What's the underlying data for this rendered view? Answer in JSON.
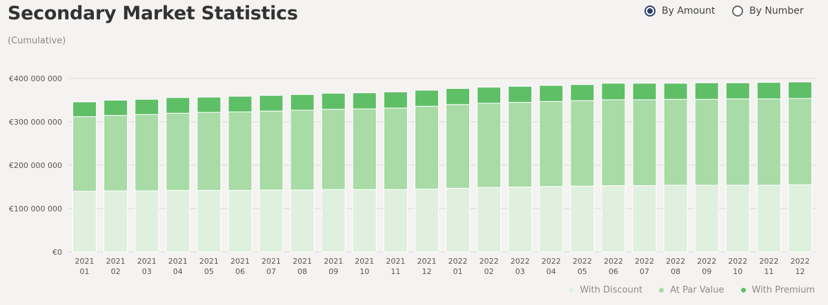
{
  "header": {
    "title": "Secondary Market Statistics",
    "subtitle": "(Cumulative)"
  },
  "controls": {
    "by_amount_label": "By Amount",
    "by_number_label": "By Number",
    "selected": "By Amount"
  },
  "colors": {
    "with_discount": "#dff0de",
    "at_par_value": "#a8dba6",
    "with_premium": "#5fbf67",
    "grid": "#d9d9d9",
    "radio_accent": "#2d3e6b"
  },
  "chart_data": {
    "type": "bar",
    "stacked": true,
    "categories": [
      [
        "2021",
        "01"
      ],
      [
        "2021",
        "02"
      ],
      [
        "2021",
        "03"
      ],
      [
        "2021",
        "04"
      ],
      [
        "2021",
        "05"
      ],
      [
        "2021",
        "06"
      ],
      [
        "2021",
        "07"
      ],
      [
        "2021",
        "08"
      ],
      [
        "2021",
        "09"
      ],
      [
        "2021",
        "10"
      ],
      [
        "2021",
        "11"
      ],
      [
        "2021",
        "12"
      ],
      [
        "2022",
        "01"
      ],
      [
        "2022",
        "02"
      ],
      [
        "2022",
        "03"
      ],
      [
        "2022",
        "04"
      ],
      [
        "2022",
        "05"
      ],
      [
        "2022",
        "06"
      ],
      [
        "2022",
        "07"
      ],
      [
        "2022",
        "08"
      ],
      [
        "2022",
        "09"
      ],
      [
        "2022",
        "10"
      ],
      [
        "2022",
        "11"
      ],
      [
        "2022",
        "12"
      ]
    ],
    "series": [
      {
        "name": "With Discount",
        "values": [
          140000000,
          141000000,
          141000000,
          142000000,
          142000000,
          142000000,
          143000000,
          143000000,
          144000000,
          144000000,
          144000000,
          145000000,
          147000000,
          149000000,
          150000000,
          151000000,
          152000000,
          153000000,
          153000000,
          154000000,
          154000000,
          154000000,
          154000000,
          155000000
        ]
      },
      {
        "name": "At Par Value",
        "values": [
          172000000,
          174000000,
          176000000,
          178000000,
          180000000,
          181000000,
          182000000,
          184000000,
          185000000,
          186000000,
          188000000,
          191000000,
          193000000,
          194000000,
          195000000,
          196000000,
          197000000,
          198000000,
          198000000,
          198000000,
          198000000,
          199000000,
          199000000,
          199000000
        ]
      },
      {
        "name": "With Premium",
        "values": [
          34000000,
          35000000,
          35000000,
          36000000,
          35000000,
          36000000,
          36000000,
          36000000,
          37000000,
          37000000,
          37000000,
          37000000,
          37000000,
          37000000,
          37000000,
          37000000,
          37000000,
          38000000,
          38000000,
          37000000,
          38000000,
          37000000,
          38000000,
          38000000
        ]
      }
    ],
    "ylim": [
      0,
      400000000
    ],
    "yticks": [
      0,
      100000000,
      200000000,
      300000000,
      400000000
    ],
    "ytick_labels": [
      "€0",
      "€100 000 000",
      "€200 000 000",
      "€300 000 000",
      "€400 000 000"
    ],
    "grid": true,
    "legend_position": "bottom-right"
  }
}
